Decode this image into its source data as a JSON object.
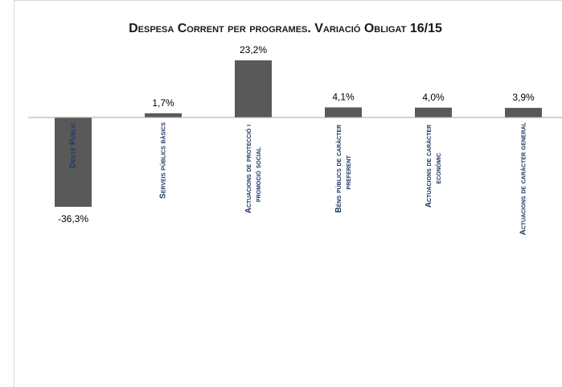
{
  "chart_data": {
    "type": "bar",
    "title": "Despesa Corrent per programes. Variació Obligat 16/15",
    "categories": [
      "Deute Públic",
      "Serveis públics bàsics",
      "Actuacions de protecció i promoció social",
      "Béns públics de caràcter preferent",
      "Actuacions de caràcter econòmic",
      "Actuacions de caràcter general"
    ],
    "values": [
      -36.3,
      1.7,
      23.2,
      4.1,
      4.0,
      3.9
    ],
    "value_labels": [
      "-36,3%",
      "1,7%",
      "23,2%",
      "4,1%",
      "4,0%",
      "3,9%"
    ],
    "color": "#595959"
  }
}
